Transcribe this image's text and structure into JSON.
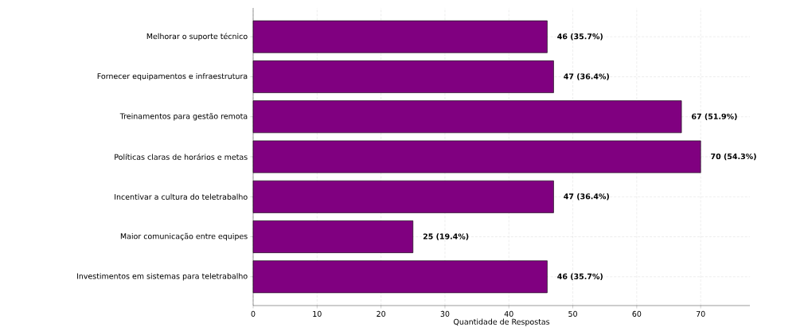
{
  "chart_data": {
    "type": "bar",
    "orientation": "horizontal",
    "xlabel": "Quantidade de Respostas",
    "categories": [
      "Melhorar o suporte técnico",
      "Fornecer equipamentos e infraestrutura",
      "Treinamentos para gestão remota",
      "Políticas claras de horários e metas",
      "Incentivar a cultura do teletrabalho",
      "Maior comunicação entre equipes",
      "Investimentos em sistemas para teletrabalho"
    ],
    "values": [
      46,
      47,
      67,
      70,
      47,
      25,
      46
    ],
    "value_labels": [
      "46 (35.7%)",
      "47 (36.4%)",
      "67 (51.9%)",
      "70 (54.3%)",
      "47 (36.4%)",
      "25 (19.4%)",
      "46 (35.7%)"
    ],
    "color": "#800080",
    "xlim": [
      0,
      77.7
    ],
    "xticks": [
      0,
      10,
      20,
      30,
      40,
      50,
      60,
      70
    ],
    "grid": true
  }
}
